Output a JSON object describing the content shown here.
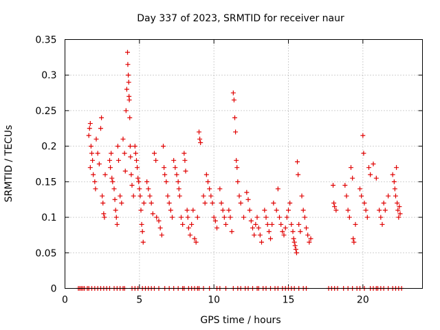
{
  "chart_data": {
    "type": "scatter",
    "title": "Day 337 of 2023, SRMTID for receiver naur",
    "xlabel": "GPS time / hours",
    "ylabel": "SRMTID / TECUs",
    "xlim": [
      0,
      24
    ],
    "ylim": [
      0,
      0.35
    ],
    "xticks": [
      0,
      5,
      10,
      15,
      20
    ],
    "xtick_labels": [
      "0",
      "5",
      "10",
      "15",
      "20"
    ],
    "yticks": [
      0,
      0.05,
      0.1,
      0.15,
      0.2,
      0.25,
      0.3,
      0.35
    ],
    "ytick_labels": [
      "0",
      "0.05",
      "0.1",
      "0.15",
      "0.2",
      "0.25",
      "0.3",
      "0.35"
    ],
    "grid": true,
    "marker": "+",
    "color": "#e00000",
    "series": [
      {
        "name": "SRMTID",
        "points": [
          [
            1.6,
            0.215
          ],
          [
            1.65,
            0.225
          ],
          [
            1.7,
            0.232
          ],
          [
            1.75,
            0.2
          ],
          [
            1.8,
            0.19
          ],
          [
            1.7,
            0.17
          ],
          [
            1.9,
            0.16
          ],
          [
            2.0,
            0.15
          ],
          [
            2.05,
            0.14
          ],
          [
            1.85,
            0.18
          ],
          [
            2.1,
            0.21
          ],
          [
            2.2,
            0.19
          ],
          [
            2.3,
            0.175
          ],
          [
            2.4,
            0.225
          ],
          [
            2.45,
            0.24
          ],
          [
            2.5,
            0.13
          ],
          [
            2.55,
            0.12
          ],
          [
            2.6,
            0.105
          ],
          [
            2.65,
            0.1
          ],
          [
            2.7,
            0.16
          ],
          [
            3.0,
            0.18
          ],
          [
            3.05,
            0.17
          ],
          [
            3.1,
            0.19
          ],
          [
            3.15,
            0.155
          ],
          [
            3.2,
            0.15
          ],
          [
            3.3,
            0.14
          ],
          [
            3.35,
            0.125
          ],
          [
            3.4,
            0.11
          ],
          [
            3.45,
            0.1
          ],
          [
            3.5,
            0.09
          ],
          [
            3.55,
            0.2
          ],
          [
            3.6,
            0.18
          ],
          [
            3.7,
            0.13
          ],
          [
            3.8,
            0.12
          ],
          [
            3.9,
            0.21
          ],
          [
            4.0,
            0.19
          ],
          [
            4.05,
            0.165
          ],
          [
            4.1,
            0.25
          ],
          [
            4.15,
            0.28
          ],
          [
            4.2,
            0.332
          ],
          [
            4.22,
            0.315
          ],
          [
            4.25,
            0.3
          ],
          [
            4.28,
            0.29
          ],
          [
            4.3,
            0.27
          ],
          [
            4.32,
            0.265
          ],
          [
            4.35,
            0.24
          ],
          [
            4.38,
            0.2
          ],
          [
            4.4,
            0.185
          ],
          [
            4.45,
            0.16
          ],
          [
            4.5,
            0.145
          ],
          [
            4.6,
            0.13
          ],
          [
            4.7,
            0.2
          ],
          [
            4.75,
            0.19
          ],
          [
            4.8,
            0.18
          ],
          [
            4.85,
            0.17
          ],
          [
            4.9,
            0.155
          ],
          [
            4.95,
            0.15
          ],
          [
            5.0,
            0.14
          ],
          [
            5.05,
            0.13
          ],
          [
            5.1,
            0.11
          ],
          [
            5.15,
            0.09
          ],
          [
            5.2,
            0.08
          ],
          [
            5.25,
            0.065
          ],
          [
            5.3,
            0.12
          ],
          [
            5.5,
            0.15
          ],
          [
            5.6,
            0.14
          ],
          [
            5.7,
            0.13
          ],
          [
            5.8,
            0.12
          ],
          [
            5.9,
            0.105
          ],
          [
            6.0,
            0.19
          ],
          [
            6.1,
            0.18
          ],
          [
            6.15,
            0.1
          ],
          [
            6.3,
            0.095
          ],
          [
            6.4,
            0.085
          ],
          [
            6.5,
            0.075
          ],
          [
            6.6,
            0.2
          ],
          [
            6.65,
            0.17
          ],
          [
            6.7,
            0.16
          ],
          [
            6.8,
            0.15
          ],
          [
            6.9,
            0.13
          ],
          [
            7.0,
            0.12
          ],
          [
            7.1,
            0.11
          ],
          [
            7.2,
            0.1
          ],
          [
            7.3,
            0.18
          ],
          [
            7.4,
            0.17
          ],
          [
            7.5,
            0.16
          ],
          [
            7.6,
            0.15
          ],
          [
            7.65,
            0.14
          ],
          [
            7.7,
            0.13
          ],
          [
            7.8,
            0.1
          ],
          [
            7.9,
            0.09
          ],
          [
            8.0,
            0.19
          ],
          [
            8.05,
            0.18
          ],
          [
            8.1,
            0.165
          ],
          [
            8.2,
            0.11
          ],
          [
            8.25,
            0.1
          ],
          [
            8.3,
            0.085
          ],
          [
            8.4,
            0.075
          ],
          [
            8.5,
            0.09
          ],
          [
            8.6,
            0.11
          ],
          [
            8.7,
            0.07
          ],
          [
            8.8,
            0.065
          ],
          [
            8.9,
            0.1
          ],
          [
            9.0,
            0.22
          ],
          [
            9.05,
            0.21
          ],
          [
            9.1,
            0.205
          ],
          [
            9.3,
            0.13
          ],
          [
            9.4,
            0.12
          ],
          [
            9.5,
            0.16
          ],
          [
            9.6,
            0.15
          ],
          [
            9.7,
            0.14
          ],
          [
            9.8,
            0.13
          ],
          [
            9.9,
            0.12
          ],
          [
            10.0,
            0.1
          ],
          [
            10.1,
            0.095
          ],
          [
            10.2,
            0.085
          ],
          [
            10.4,
            0.14
          ],
          [
            10.5,
            0.12
          ],
          [
            10.6,
            0.11
          ],
          [
            10.7,
            0.1
          ],
          [
            10.8,
            0.09
          ],
          [
            11.0,
            0.11
          ],
          [
            11.1,
            0.1
          ],
          [
            11.2,
            0.08
          ],
          [
            11.3,
            0.275
          ],
          [
            11.35,
            0.265
          ],
          [
            11.4,
            0.24
          ],
          [
            11.45,
            0.22
          ],
          [
            11.5,
            0.18
          ],
          [
            11.55,
            0.17
          ],
          [
            11.6,
            0.15
          ],
          [
            11.7,
            0.13
          ],
          [
            11.8,
            0.12
          ],
          [
            12.0,
            0.1
          ],
          [
            12.2,
            0.135
          ],
          [
            12.3,
            0.125
          ],
          [
            12.4,
            0.11
          ],
          [
            12.5,
            0.095
          ],
          [
            12.6,
            0.085
          ],
          [
            12.7,
            0.075
          ],
          [
            12.8,
            0.09
          ],
          [
            12.9,
            0.1
          ],
          [
            13.0,
            0.085
          ],
          [
            13.1,
            0.075
          ],
          [
            13.2,
            0.065
          ],
          [
            13.4,
            0.11
          ],
          [
            13.5,
            0.1
          ],
          [
            13.6,
            0.09
          ],
          [
            13.7,
            0.08
          ],
          [
            13.8,
            0.07
          ],
          [
            13.9,
            0.09
          ],
          [
            14.0,
            0.12
          ],
          [
            14.2,
            0.11
          ],
          [
            14.3,
            0.14
          ],
          [
            14.4,
            0.1
          ],
          [
            14.5,
            0.09
          ],
          [
            14.6,
            0.08
          ],
          [
            14.7,
            0.075
          ],
          [
            14.8,
            0.085
          ],
          [
            14.9,
            0.1
          ],
          [
            15.0,
            0.11
          ],
          [
            15.1,
            0.12
          ],
          [
            15.2,
            0.09
          ],
          [
            15.3,
            0.08
          ],
          [
            15.35,
            0.07
          ],
          [
            15.4,
            0.065
          ],
          [
            15.45,
            0.06
          ],
          [
            15.5,
            0.055
          ],
          [
            15.55,
            0.05
          ],
          [
            15.6,
            0.178
          ],
          [
            15.65,
            0.16
          ],
          [
            15.7,
            0.09
          ],
          [
            15.8,
            0.08
          ],
          [
            15.9,
            0.13
          ],
          [
            16.0,
            0.11
          ],
          [
            16.1,
            0.1
          ],
          [
            16.2,
            0.085
          ],
          [
            16.3,
            0.075
          ],
          [
            16.4,
            0.065
          ],
          [
            16.5,
            0.07
          ],
          [
            18.0,
            0.145
          ],
          [
            18.05,
            0.12
          ],
          [
            18.1,
            0.115
          ],
          [
            18.2,
            0.11
          ],
          [
            18.8,
            0.145
          ],
          [
            18.9,
            0.13
          ],
          [
            19.0,
            0.11
          ],
          [
            19.1,
            0.1
          ],
          [
            19.2,
            0.17
          ],
          [
            19.3,
            0.155
          ],
          [
            19.35,
            0.07
          ],
          [
            19.4,
            0.065
          ],
          [
            19.5,
            0.09
          ],
          [
            19.8,
            0.14
          ],
          [
            19.9,
            0.13
          ],
          [
            20.0,
            0.215
          ],
          [
            20.05,
            0.19
          ],
          [
            20.1,
            0.12
          ],
          [
            20.2,
            0.11
          ],
          [
            20.3,
            0.1
          ],
          [
            20.4,
            0.17
          ],
          [
            20.5,
            0.16
          ],
          [
            20.7,
            0.175
          ],
          [
            20.9,
            0.155
          ],
          [
            21.1,
            0.11
          ],
          [
            21.2,
            0.1
          ],
          [
            21.3,
            0.09
          ],
          [
            21.4,
            0.12
          ],
          [
            21.5,
            0.11
          ],
          [
            21.7,
            0.13
          ],
          [
            22.0,
            0.16
          ],
          [
            22.1,
            0.15
          ],
          [
            22.15,
            0.14
          ],
          [
            22.2,
            0.13
          ],
          [
            22.25,
            0.17
          ],
          [
            22.3,
            0.12
          ],
          [
            22.35,
            0.11
          ],
          [
            22.4,
            0.1
          ],
          [
            22.45,
            0.115
          ],
          [
            22.5,
            0.105
          ]
        ],
        "zero_points": [
          0.9,
          1.0,
          1.1,
          1.2,
          1.3,
          1.5,
          1.6,
          1.8,
          2.0,
          2.2,
          2.4,
          2.6,
          2.8,
          3.0,
          3.3,
          3.5,
          3.7,
          3.9,
          4.0,
          4.5,
          4.7,
          4.9,
          5.2,
          5.4,
          5.6,
          5.8,
          6.0,
          6.3,
          6.7,
          7.0,
          7.3,
          7.6,
          7.9,
          8.0,
          8.3,
          8.5,
          8.7,
          8.9,
          9.0,
          9.3,
          9.7,
          10.2,
          10.4,
          10.8,
          11.3,
          11.6,
          11.8,
          12.1,
          12.3,
          12.6,
          12.9,
          13.0,
          13.3,
          13.5,
          13.8,
          14.1,
          14.3,
          14.6,
          14.8,
          15.0,
          15.2,
          15.4,
          15.7,
          16.0,
          16.2,
          17.7,
          17.9,
          18.1,
          18.3,
          18.7,
          19.0,
          19.3,
          19.6,
          19.8,
          20.1,
          20.5,
          20.7,
          20.9,
          21.0,
          21.2,
          21.4,
          21.7,
          22.0,
          22.2,
          22.4,
          22.6
        ]
      }
    ]
  }
}
